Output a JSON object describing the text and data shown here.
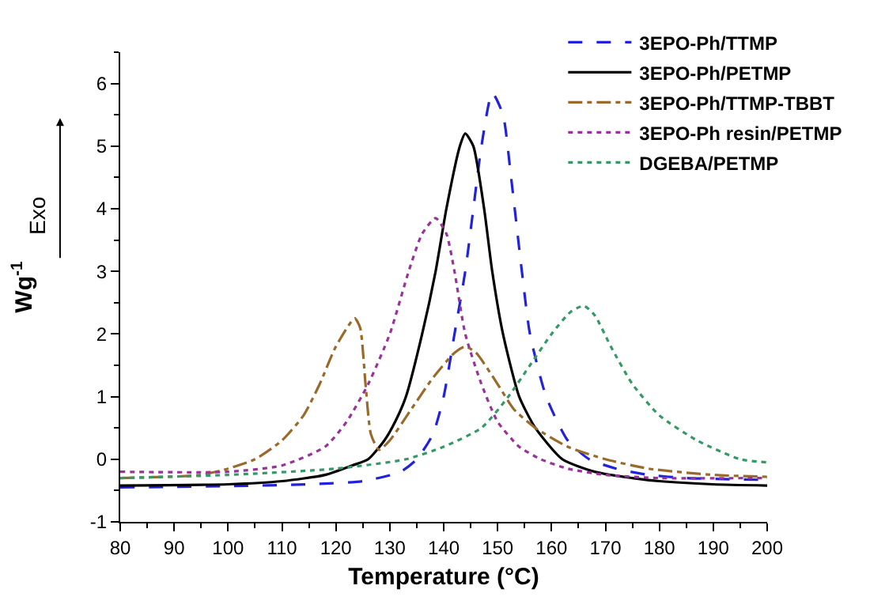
{
  "chart_data": {
    "type": "line",
    "xlabel": "Temperature (°C)",
    "ylabel": "Wg$^{-1}$",
    "annotations": [
      "Exo"
    ],
    "xlim": [
      80,
      200
    ],
    "xticks": [
      80,
      90,
      100,
      110,
      120,
      130,
      140,
      150,
      160,
      170,
      180,
      190,
      200
    ],
    "ylim": [
      -1,
      6.5
    ],
    "yticks": [
      -1,
      0,
      1,
      2,
      3,
      4,
      5,
      6
    ],
    "legend": "top right",
    "marker": "none",
    "series": [
      {
        "name": "3EPO-Ph/TTMP",
        "color": "#2222dd",
        "line_style": "dashed",
        "x": [
          80,
          100,
          115,
          125,
          132,
          135,
          138,
          140,
          142,
          144,
          145.5,
          147,
          149,
          151,
          152.5,
          154.5,
          156,
          159,
          163,
          167,
          172,
          178,
          185,
          200
        ],
        "values": [
          -0.45,
          -0.43,
          -0.4,
          -0.35,
          -0.2,
          0,
          0.4,
          1,
          2,
          3,
          4,
          5,
          5.85,
          5.5,
          4.5,
          3,
          2,
          1,
          0.3,
          0,
          -0.15,
          -0.25,
          -0.3,
          -0.33
        ]
      },
      {
        "name": "3EPO-Ph/PETMP",
        "color": "#000000",
        "line_style": "solid",
        "x": [
          80,
          100,
          110,
          118,
          123,
          126,
          129,
          131,
          133,
          136,
          138.5,
          140.5,
          143,
          144,
          145.5,
          147.5,
          149,
          151,
          154,
          157,
          162,
          168,
          175,
          180,
          190,
          200
        ],
        "values": [
          -0.42,
          -0.4,
          -0.35,
          -0.25,
          -0.1,
          0,
          0.3,
          0.6,
          1,
          2,
          3,
          4,
          5,
          5.2,
          5,
          4,
          3,
          2,
          1,
          0.5,
          0,
          -0.2,
          -0.3,
          -0.35,
          -0.4,
          -0.42
        ]
      },
      {
        "name": "3EPO-Ph/TTMP-TBBT",
        "color": "#9a6a2a",
        "line_style": "dashdot",
        "x": [
          80,
          95,
          100,
          105,
          110,
          114,
          117,
          120,
          123.5,
          124.5,
          125.5,
          126.5,
          128,
          130,
          134,
          138,
          142,
          144,
          146,
          150,
          153,
          157,
          163,
          170,
          178,
          190,
          200
        ],
        "values": [
          -0.3,
          -0.25,
          -0.15,
          0,
          0.3,
          0.7,
          1.2,
          1.8,
          2.25,
          2.1,
          1.2,
          0.4,
          0.15,
          0.3,
          0.8,
          1.3,
          1.7,
          1.8,
          1.7,
          1.2,
          0.8,
          0.5,
          0.2,
          0,
          -0.15,
          -0.25,
          -0.28
        ]
      },
      {
        "name": "3EPO-Ph resin/PETMP",
        "color": "#993399",
        "line_style": "dotted",
        "x": [
          80,
          100,
          110,
          118,
          122,
          126,
          130,
          133.5,
          136,
          138.5,
          140.5,
          142,
          144,
          147,
          150,
          154,
          158,
          163,
          170,
          180,
          200
        ],
        "values": [
          -0.2,
          -0.2,
          -0.1,
          0.2,
          0.6,
          1.2,
          2,
          3,
          3.6,
          3.85,
          3.6,
          3,
          2,
          1.2,
          0.6,
          0.2,
          0,
          -0.15,
          -0.25,
          -0.3,
          -0.3
        ]
      },
      {
        "name": "DGEBA/PETMP",
        "color": "#339966",
        "line_style": "dotted",
        "x": [
          80,
          100,
          120,
          133,
          140,
          147,
          152,
          156,
          160,
          163.5,
          166,
          168,
          171,
          175,
          180,
          187,
          195,
          200
        ],
        "values": [
          -0.3,
          -0.25,
          -0.15,
          0,
          0.2,
          0.5,
          1,
          1.5,
          2,
          2.35,
          2.45,
          2.3,
          1.8,
          1.2,
          0.7,
          0.3,
          0,
          -0.05
        ]
      }
    ]
  }
}
